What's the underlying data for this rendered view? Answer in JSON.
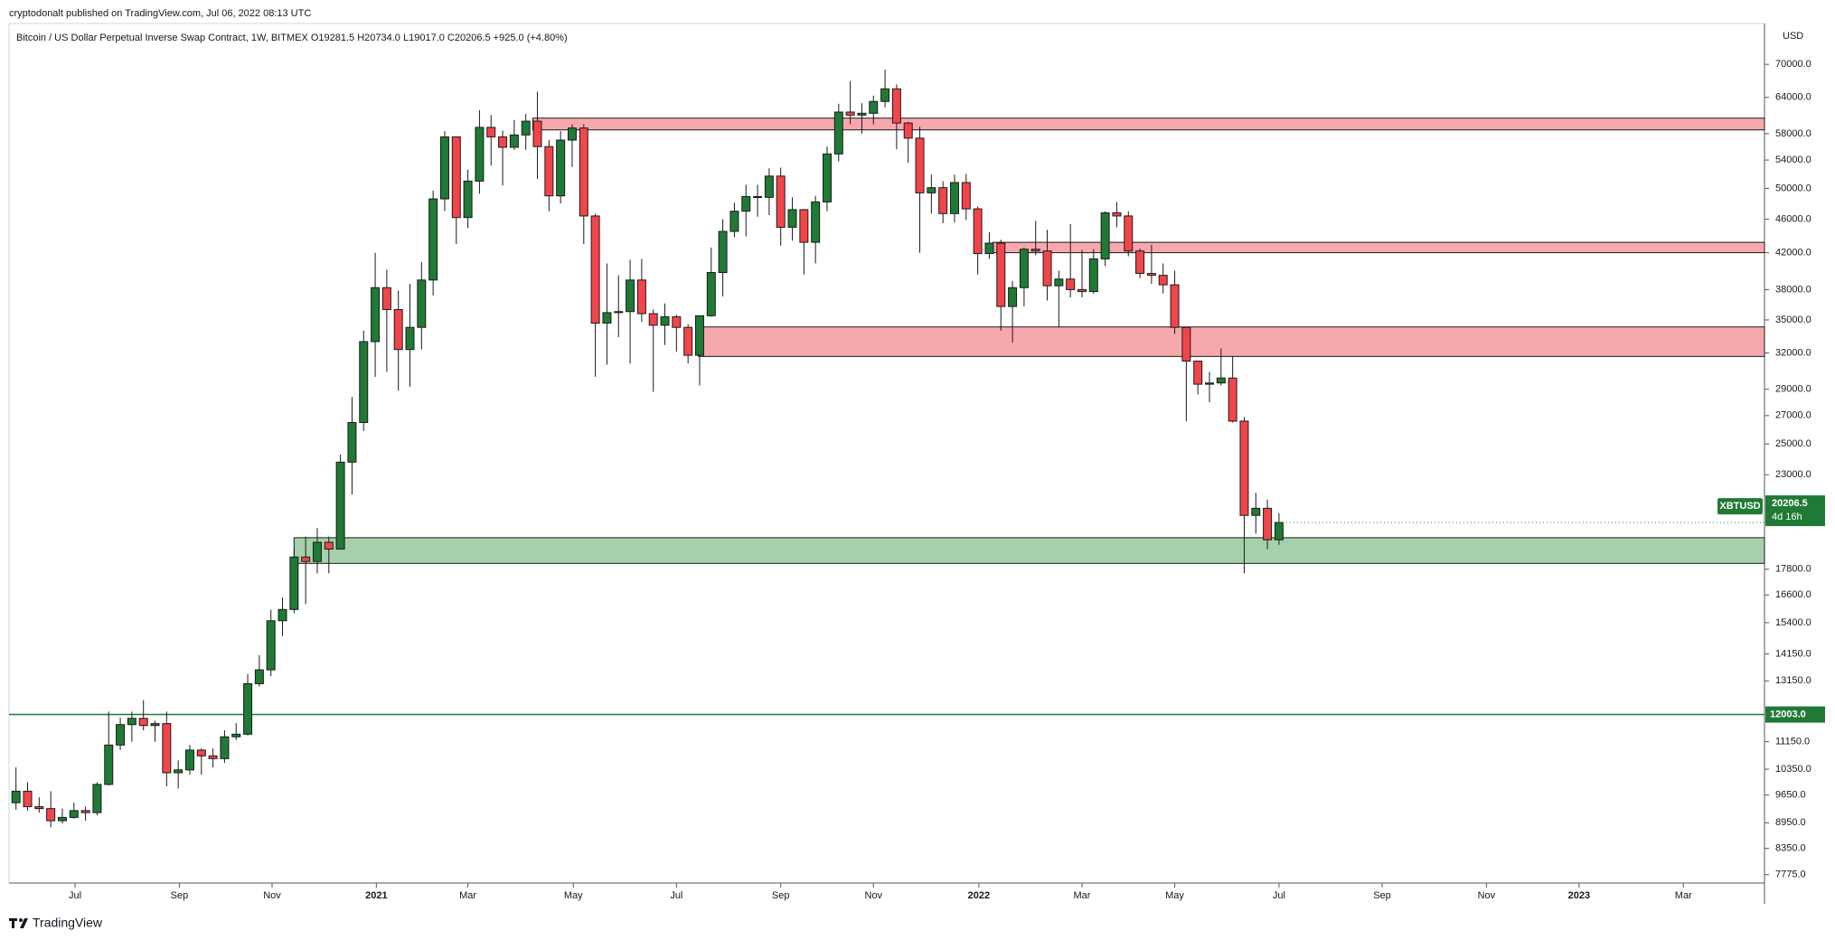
{
  "chart_data": {
    "type": "candlestick",
    "published": "cryptodonalt published on TradingView.com, Jul 06, 2022 08:13 UTC",
    "title": "Bitcoin / US Dollar Perpetual Inverse Swap Contract, 1W, BITMEX  O19281.5  H20734.0  L19017.0  C20206.5  +925.0 (+4.80%)",
    "y_axis_label": "USD",
    "brand": "TradingView",
    "log_scale": true,
    "grid": false,
    "up_color": "#1f7a35",
    "down_color": "#f2454a",
    "border_color": "#1b1b1b",
    "open": [
      9450,
      9750,
      9350,
      9300,
      9000,
      9080,
      9250,
      9200,
      9930,
      11050,
      11680,
      11880,
      11650,
      11710,
      10250,
      10330,
      10900,
      10730,
      10650,
      11300,
      11380,
      13050,
      13550,
      15480,
      15960,
      18400,
      18180,
      19150,
      18800,
      23800,
      26500,
      33000,
      38200,
      36000,
      32300,
      34300,
      39000,
      48600,
      57500,
      46200,
      51000,
      59000,
      57500,
      55900,
      57800,
      60000,
      56000,
      49000,
      57000,
      58900,
      46400,
      34700,
      35700,
      35800,
      39000,
      35600,
      34500,
      35300,
      34300,
      31800,
      35400,
      39800,
      44500,
      47000,
      48900,
      48800,
      51700,
      45000,
      47200,
      43200,
      48200,
      54900,
      61500,
      61000,
      61300,
      63300,
      65500,
      59700,
      57300,
      49400,
      50100,
      46700,
      50800,
      47300,
      41900,
      43100,
      36300,
      38200,
      42400,
      42200,
      38400,
      39100,
      38000,
      37800,
      41300,
      46800,
      46400,
      42200,
      39700,
      39500,
      38500,
      34300,
      31300,
      29400,
      29500,
      29900,
      26600,
      20600,
      21000,
      19281.5
    ],
    "high": [
      10400,
      9990,
      9590,
      9750,
      9300,
      9450,
      9350,
      9990,
      12100,
      11900,
      12100,
      12480,
      11800,
      12100,
      10600,
      11050,
      10950,
      10950,
      11500,
      11730,
      13400,
      14100,
      15950,
      16490,
      18800,
      19450,
      19900,
      19450,
      24300,
      28400,
      34000,
      42000,
      40100,
      37900,
      38600,
      40950,
      49700,
      58400,
      57500,
      52600,
      61800,
      61000,
      58500,
      60200,
      61200,
      65000,
      57000,
      58400,
      59500,
      59500,
      46700,
      40800,
      39500,
      41200,
      41300,
      36000,
      36600,
      35500,
      34600,
      35400,
      42600,
      46000,
      48100,
      50500,
      50500,
      52800,
      52900,
      48800,
      47300,
      49000,
      56000,
      62900,
      66900,
      63000,
      64300,
      69000,
      66300,
      59900,
      59100,
      51900,
      51000,
      51900,
      52000,
      47600,
      44400,
      43500,
      38900,
      42600,
      45800,
      44700,
      40000,
      45400,
      42300,
      42400,
      47000,
      48200,
      47000,
      42500,
      42900,
      40800,
      40000,
      34300,
      31300,
      30400,
      32400,
      31700,
      26900,
      21900,
      21500,
      20734
    ],
    "low": [
      9270,
      9250,
      9200,
      8840,
      8930,
      9050,
      9000,
      9130,
      9900,
      10900,
      11150,
      11500,
      11150,
      9880,
      9820,
      10200,
      10200,
      10400,
      10530,
      11200,
      11340,
      12950,
      13320,
      14850,
      15800,
      16200,
      17600,
      17600,
      18800,
      21800,
      25900,
      30000,
      30400,
      28900,
      29200,
      32300,
      37400,
      47000,
      43000,
      44900,
      49300,
      53200,
      50400,
      55500,
      55500,
      51300,
      47000,
      48000,
      53000,
      43000,
      30000,
      31000,
      33400,
      31100,
      34800,
      28800,
      32700,
      32100,
      31100,
      29300,
      35300,
      37300,
      43800,
      43900,
      46300,
      46500,
      42800,
      43400,
      39600,
      40800,
      47000,
      53800,
      59500,
      58000,
      59500,
      62300,
      55600,
      53600,
      42000,
      46700,
      45500,
      45600,
      45900,
      39600,
      41300,
      34000,
      32900,
      36300,
      41700,
      36900,
      34300,
      37200,
      37200,
      37600,
      40500,
      45000,
      41600,
      39200,
      38600,
      37600,
      33700,
      26600,
      28600,
      28000,
      29300,
      26500,
      17600,
      19600,
      18800,
      19017
    ],
    "close": [
      9750,
      9350,
      9300,
      9000,
      9080,
      9250,
      9200,
      9930,
      11050,
      11680,
      11880,
      11650,
      11710,
      10250,
      10330,
      10900,
      10730,
      10650,
      11300,
      11380,
      13050,
      13550,
      15480,
      15960,
      18400,
      18180,
      19150,
      18800,
      23800,
      26500,
      33000,
      38200,
      36000,
      32300,
      34300,
      39000,
      48600,
      57500,
      46200,
      51000,
      59000,
      57500,
      55900,
      57800,
      60000,
      56000,
      49000,
      57000,
      58900,
      46400,
      34700,
      35700,
      35800,
      39000,
      35600,
      34500,
      35300,
      34300,
      31800,
      35400,
      39800,
      44500,
      47000,
      48900,
      48800,
      51700,
      45000,
      47200,
      43200,
      48200,
      54900,
      61500,
      61000,
      61300,
      63300,
      65500,
      59700,
      57300,
      49400,
      50100,
      46700,
      50800,
      47300,
      41900,
      43100,
      36300,
      38200,
      42400,
      42200,
      38400,
      39100,
      38000,
      37800,
      41300,
      46800,
      46400,
      42200,
      39700,
      39500,
      38500,
      34300,
      31300,
      29400,
      29500,
      29900,
      26600,
      20600,
      21000,
      19280,
      20206.5
    ],
    "xlim": [
      -0.6,
      150.9
    ],
    "xticks": [
      {
        "value": 5.1,
        "label": "Jul"
      },
      {
        "value": 14.1,
        "label": "Sep"
      },
      {
        "value": 22.1,
        "label": "Nov"
      },
      {
        "value": 31.1,
        "label": "2021"
      },
      {
        "value": 39.0,
        "label": "Mar"
      },
      {
        "value": 48.1,
        "label": "May"
      },
      {
        "value": 57.0,
        "label": "Jul"
      },
      {
        "value": 66.0,
        "label": "Sep"
      },
      {
        "value": 74.0,
        "label": "Nov"
      },
      {
        "value": 83.1,
        "label": "2022"
      },
      {
        "value": 92.0,
        "label": "Mar"
      },
      {
        "value": 100.0,
        "label": "May"
      },
      {
        "value": 109.0,
        "label": "Jul"
      },
      {
        "value": 117.9,
        "label": "Sep"
      },
      {
        "value": 126.9,
        "label": "Nov"
      },
      {
        "value": 134.9,
        "label": "2023"
      },
      {
        "value": 143.9,
        "label": "Mar"
      }
    ],
    "ylim": [
      7600,
      78200
    ],
    "yticks": [
      {
        "value": 7775,
        "label": "7775.0"
      },
      {
        "value": 8350,
        "label": "8350.0"
      },
      {
        "value": 8950,
        "label": "8950.0"
      },
      {
        "value": 9650,
        "label": "9650.0"
      },
      {
        "value": 10350,
        "label": "10350.0"
      },
      {
        "value": 11150,
        "label": "11150.0"
      },
      {
        "value": 13150,
        "label": "13150.0"
      },
      {
        "value": 14150,
        "label": "14150.0"
      },
      {
        "value": 15400,
        "label": "15400.0"
      },
      {
        "value": 16600,
        "label": "16600.0"
      },
      {
        "value": 17800,
        "label": "17800.0"
      },
      {
        "value": 23000,
        "label": "23000.0"
      },
      {
        "value": 25000,
        "label": "25000.0"
      },
      {
        "value": 27000,
        "label": "27000.0"
      },
      {
        "value": 29000,
        "label": "29000.0"
      },
      {
        "value": 32000,
        "label": "32000.0"
      },
      {
        "value": 35000,
        "label": "35000.0"
      },
      {
        "value": 38000,
        "label": "38000.0"
      },
      {
        "value": 42000,
        "label": "42000.0"
      },
      {
        "value": 46000,
        "label": "46000.0"
      },
      {
        "value": 50000,
        "label": "50000.0"
      },
      {
        "value": 54000,
        "label": "54000.0"
      },
      {
        "value": 58000,
        "label": "58000.0"
      },
      {
        "value": 64000,
        "label": "64000.0"
      },
      {
        "value": 70000,
        "label": "70000.0"
      }
    ],
    "zones": [
      {
        "low": 58600,
        "high": 60500,
        "start": 44.6,
        "color": "#f7a8ad"
      },
      {
        "low": 42000,
        "high": 43200,
        "start": 84.3,
        "color": "#f7a8ad"
      },
      {
        "low": 31700,
        "high": 34340,
        "start": 58.9,
        "color": "#f7a8ad"
      },
      {
        "low": 18085,
        "high": 19390,
        "start": 24.0,
        "color": "#a5d0ab"
      }
    ],
    "hline": {
      "value": 12003,
      "label": "12003.0",
      "color": "#1f7a35"
    },
    "last_price": {
      "value": 20206.5,
      "symbol": "XBTUSD",
      "countdown": "4d 16h",
      "color": "#1f7a35"
    }
  }
}
